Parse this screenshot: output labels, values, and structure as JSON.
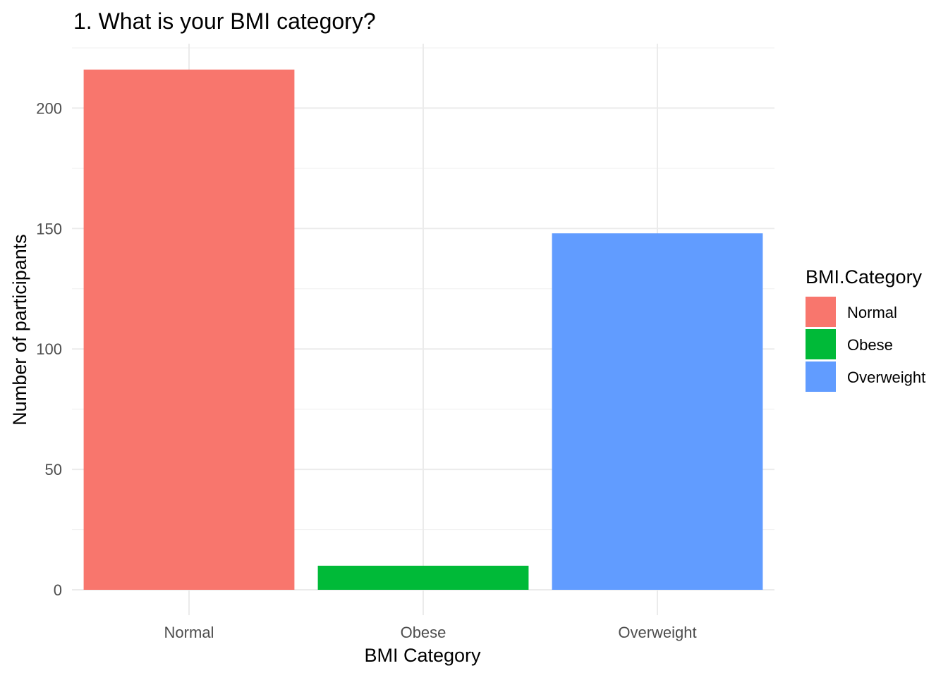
{
  "chart_data": {
    "type": "bar",
    "title": "1. What is your BMI category?",
    "xlabel": "BMI Category",
    "ylabel": "Number of participants",
    "categories": [
      "Normal",
      "Obese",
      "Overweight"
    ],
    "values": [
      216,
      10,
      148
    ],
    "colors": [
      "#F8766D",
      "#00BA38",
      "#619CFF"
    ],
    "ylim": [
      0,
      225
    ],
    "yticks": [
      0,
      50,
      100,
      150,
      200
    ],
    "ytick_labels": [
      "0",
      "50",
      "100",
      "150",
      "200"
    ],
    "grid": true,
    "legend": {
      "title": "BMI.Category",
      "placement": "right",
      "entries": [
        "Normal",
        "Obese",
        "Overweight"
      ]
    }
  }
}
